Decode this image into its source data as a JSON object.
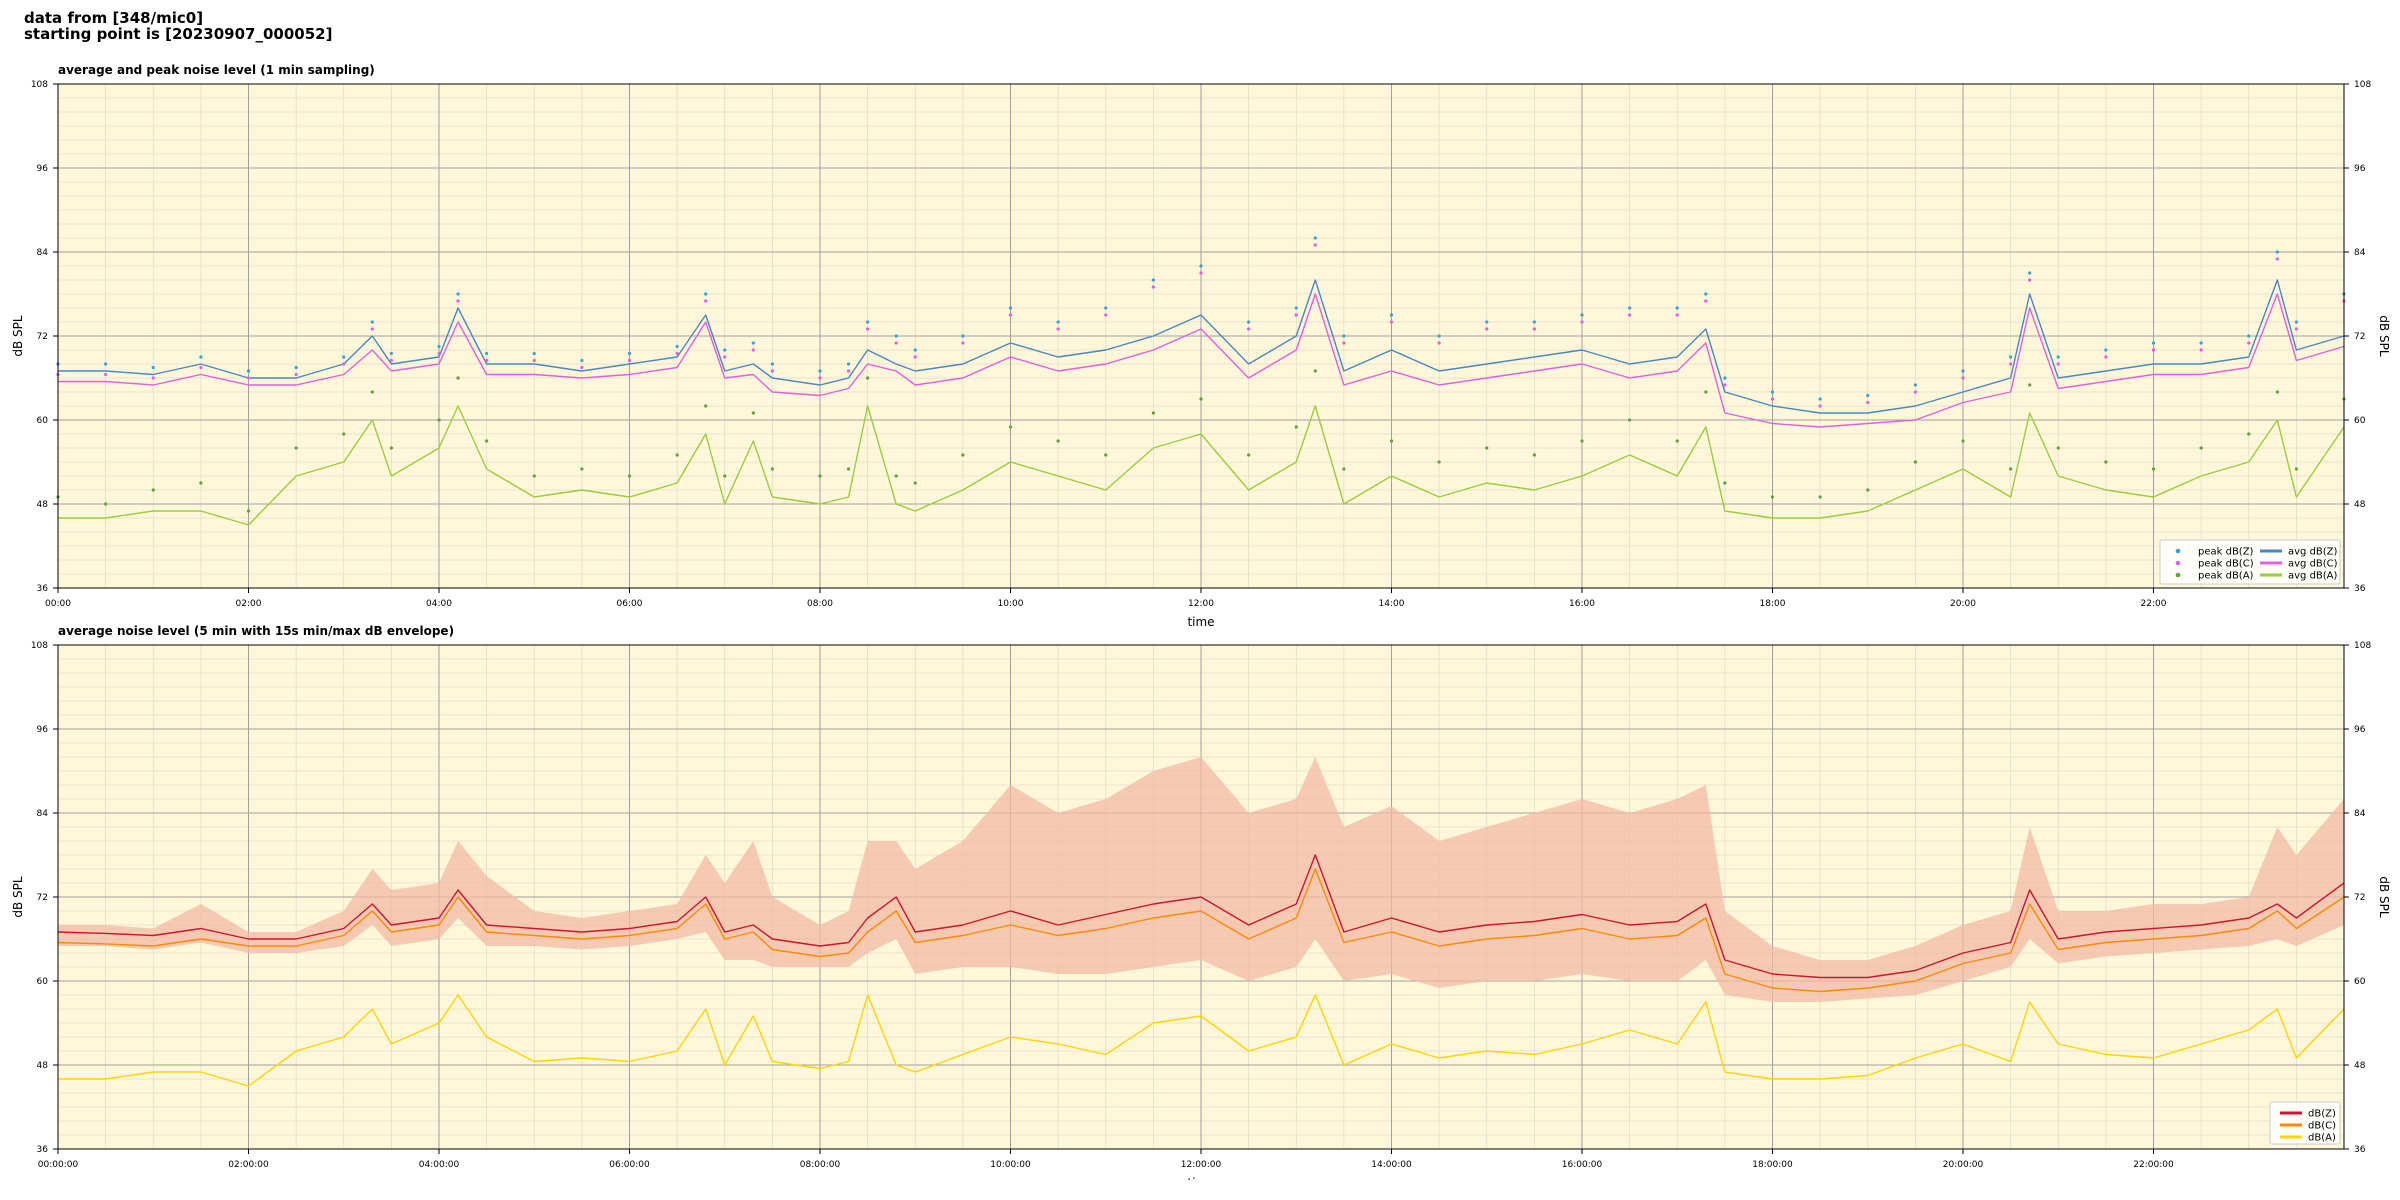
{
  "header": {
    "line1": "data from [348/mic0]",
    "line2": "starting point is [20230907_000052]"
  },
  "colors": {
    "background": "#fff7d9",
    "grid_major": "#a0a0a0",
    "grid_minor": "#dcdcc8",
    "dbz": "#4a87c0",
    "dbc": "#e060e0",
    "dba": "#9bcd3a",
    "dbz2": "#cc1433",
    "dbc2": "#ff8a00",
    "dba2": "#ffd400",
    "envelope": "#f3b9a6"
  },
  "chart_data": [
    {
      "type": "line",
      "title": "average and peak noise level (1 min sampling)",
      "xlabel": "time",
      "ylabel": "dB SPL",
      "ylabel_right": "dB SPL",
      "xlim": [
        0,
        24
      ],
      "ylim": [
        36,
        108
      ],
      "yticks": [
        "36",
        "48",
        "60",
        "72",
        "84",
        "96",
        "108"
      ],
      "xtick_labels": [
        "00:00",
        "02:00",
        "04:00",
        "06:00",
        "08:00",
        "10:00",
        "12:00",
        "14:00",
        "16:00",
        "18:00",
        "20:00",
        "22:00"
      ],
      "grid": true,
      "legend_position": "lower-right",
      "legend": [
        "peak dB(Z)",
        "peak dB(C)",
        "peak dB(A)",
        "avg dB(Z)",
        "avg dB(C)",
        "avg dB(A)"
      ],
      "x": [
        0,
        0.5,
        1,
        1.5,
        2,
        2.5,
        3,
        3.3,
        3.5,
        4,
        4.2,
        4.5,
        5,
        5.5,
        6,
        6.5,
        6.8,
        7,
        7.3,
        7.5,
        8,
        8.3,
        8.5,
        8.8,
        9,
        9.5,
        10,
        10.5,
        11,
        11.5,
        12,
        12.5,
        13,
        13.2,
        13.5,
        14,
        14.5,
        15,
        15.5,
        16,
        16.5,
        17,
        17.3,
        17.5,
        18,
        18.5,
        19,
        19.5,
        20,
        20.5,
        20.7,
        21,
        21.5,
        22,
        22.5,
        23,
        23.3,
        23.5,
        24
      ],
      "series": [
        {
          "name": "avg dB(Z)",
          "values": [
            67,
            67,
            66.5,
            68,
            66,
            66,
            68,
            72,
            68,
            69,
            76,
            68,
            68,
            67,
            68,
            69,
            75,
            67,
            68,
            66,
            65,
            66,
            70,
            68,
            67,
            68,
            71,
            69,
            70,
            72,
            75,
            68,
            72,
            80,
            67,
            70,
            67,
            68,
            69,
            70,
            68,
            69,
            73,
            64,
            62,
            61,
            61,
            62,
            64,
            66,
            78,
            66,
            67,
            68,
            68,
            69,
            80,
            70,
            72
          ]
        },
        {
          "name": "avg dB(C)",
          "values": [
            65.5,
            65.5,
            65,
            66.5,
            65,
            65,
            66.5,
            70,
            67,
            68,
            74,
            66.5,
            66.5,
            66,
            66.5,
            67.5,
            74,
            66,
            66.5,
            64,
            63.5,
            64.5,
            68,
            67,
            65,
            66,
            69,
            67,
            68,
            70,
            73,
            66,
            70,
            78,
            65,
            67,
            65,
            66,
            67,
            68,
            66,
            67,
            71,
            61,
            59.5,
            59,
            59.5,
            60,
            62.5,
            64,
            76,
            64.5,
            65.5,
            66.5,
            66.5,
            67.5,
            78,
            68.5,
            70.5
          ]
        },
        {
          "name": "avg dB(A)",
          "values": [
            46,
            46,
            47,
            47,
            45,
            52,
            54,
            60,
            52,
            56,
            62,
            53,
            49,
            50,
            49,
            51,
            58,
            48,
            57,
            49,
            48,
            49,
            62,
            48,
            47,
            50,
            54,
            52,
            50,
            56,
            58,
            50,
            54,
            62,
            48,
            52,
            49,
            51,
            50,
            52,
            55,
            52,
            59,
            47,
            46,
            46,
            47,
            50,
            53,
            49,
            61,
            52,
            50,
            49,
            52,
            54,
            60,
            49,
            59
          ]
        },
        {
          "name": "peak dB(Z)",
          "values": [
            68,
            68,
            67.5,
            69,
            67,
            67.5,
            69,
            74,
            69.5,
            70.5,
            78,
            69.5,
            69.5,
            68.5,
            69.5,
            70.5,
            78,
            70,
            71,
            68,
            67,
            68,
            74,
            72,
            70,
            72,
            76,
            74,
            76,
            80,
            82,
            74,
            76,
            86,
            72,
            75,
            72,
            74,
            74,
            75,
            76,
            76,
            78,
            66,
            64,
            63,
            63.5,
            65,
            67,
            69,
            81,
            69,
            70,
            71,
            71,
            72,
            84,
            74,
            78
          ]
        },
        {
          "name": "peak dB(C)",
          "values": [
            66.5,
            66.5,
            66,
            67.5,
            66,
            66.5,
            68,
            73,
            68.5,
            69.5,
            77,
            68.5,
            68.5,
            67.5,
            68.5,
            69.5,
            77,
            69,
            70,
            67,
            66,
            67,
            73,
            71,
            69,
            71,
            75,
            73,
            75,
            79,
            81,
            73,
            75,
            85,
            71,
            74,
            71,
            73,
            73,
            74,
            75,
            75,
            77,
            65,
            63,
            62,
            62.5,
            64,
            66,
            68,
            80,
            68,
            69,
            70,
            70,
            71,
            83,
            73,
            77
          ]
        },
        {
          "name": "peak dB(A)",
          "values": [
            49,
            48,
            50,
            51,
            47,
            56,
            58,
            64,
            56,
            60,
            66,
            57,
            52,
            53,
            52,
            55,
            62,
            52,
            61,
            53,
            52,
            53,
            66,
            52,
            51,
            55,
            59,
            57,
            55,
            61,
            63,
            55,
            59,
            67,
            53,
            57,
            54,
            56,
            55,
            57,
            60,
            57,
            64,
            51,
            49,
            49,
            50,
            54,
            57,
            53,
            65,
            56,
            54,
            53,
            56,
            58,
            64,
            53,
            63
          ]
        }
      ]
    },
    {
      "type": "line",
      "title": "average noise level (5 min with 15s min/max dB envelope)",
      "xlabel": "time",
      "ylabel": "dB SPL",
      "ylabel_right": "dB SPL",
      "xlim": [
        0,
        24
      ],
      "ylim": [
        36,
        108
      ],
      "yticks": [
        "36",
        "48",
        "60",
        "72",
        "84",
        "96",
        "108"
      ],
      "xtick_labels": [
        "00:00:00",
        "02:00:00",
        "04:00:00",
        "06:00:00",
        "08:00:00",
        "10:00:00",
        "12:00:00",
        "14:00:00",
        "16:00:00",
        "18:00:00",
        "20:00:00",
        "22:00:00"
      ],
      "grid": true,
      "legend_position": "lower-right",
      "legend": [
        "dB(Z)",
        "dB(C)",
        "dB(A)"
      ],
      "x": [
        0,
        0.5,
        1,
        1.5,
        2,
        2.5,
        3,
        3.3,
        3.5,
        4,
        4.2,
        4.5,
        5,
        5.5,
        6,
        6.5,
        6.8,
        7,
        7.3,
        7.5,
        8,
        8.3,
        8.5,
        8.8,
        9,
        9.5,
        10,
        10.5,
        11,
        11.5,
        12,
        12.5,
        13,
        13.2,
        13.5,
        14,
        14.5,
        15,
        15.5,
        16,
        16.5,
        17,
        17.3,
        17.5,
        18,
        18.5,
        19,
        19.5,
        20,
        20.5,
        20.7,
        21,
        21.5,
        22,
        22.5,
        23,
        23.3,
        23.5,
        24
      ],
      "series": [
        {
          "name": "dB(Z)",
          "values": [
            67,
            66.8,
            66.5,
            67.5,
            66,
            66,
            67.5,
            71,
            68,
            69,
            73,
            68,
            67.5,
            67,
            67.5,
            68.5,
            72,
            67,
            68,
            66,
            65,
            65.5,
            69,
            72,
            67,
            68,
            70,
            68,
            69.5,
            71,
            72,
            68,
            71,
            78,
            67,
            69,
            67,
            68,
            68.5,
            69.5,
            68,
            68.5,
            71,
            63,
            61,
            60.5,
            60.5,
            61.5,
            64,
            65.5,
            73,
            66,
            67,
            67.5,
            68,
            69,
            71,
            69,
            74
          ]
        },
        {
          "name": "dB(C)",
          "values": [
            65.5,
            65.3,
            65,
            66,
            65,
            65,
            66.5,
            70,
            67,
            68,
            72,
            67,
            66.5,
            66,
            66.5,
            67.5,
            71,
            66,
            67,
            64.5,
            63.5,
            64,
            67,
            70,
            65.5,
            66.5,
            68,
            66.5,
            67.5,
            69,
            70,
            66,
            69,
            76,
            65.5,
            67,
            65,
            66,
            66.5,
            67.5,
            66,
            66.5,
            69,
            61,
            59,
            58.5,
            59,
            60,
            62.5,
            64,
            71,
            64.5,
            65.5,
            66,
            66.5,
            67.5,
            70,
            67.5,
            72
          ]
        },
        {
          "name": "dB(A)",
          "values": [
            46,
            46,
            47,
            47,
            45,
            50,
            52,
            56,
            51,
            54,
            58,
            52,
            48.5,
            49,
            48.5,
            50,
            56,
            48,
            55,
            48.5,
            47.5,
            48.5,
            58,
            48,
            47,
            49.5,
            52,
            51,
            49.5,
            54,
            55,
            50,
            52,
            58,
            48,
            51,
            49,
            50,
            49.5,
            51,
            53,
            51,
            57,
            47,
            46,
            46,
            46.5,
            49,
            51,
            48.5,
            57,
            51,
            49.5,
            49,
            51,
            53,
            56,
            49,
            56
          ]
        },
        {
          "name": "envelope max",
          "values": [
            68,
            68,
            67.5,
            71,
            67,
            67,
            70,
            76,
            73,
            74,
            80,
            75,
            70,
            69,
            70,
            71,
            78,
            74,
            80,
            72,
            68,
            70,
            80,
            80,
            76,
            80,
            88,
            84,
            86,
            90,
            92,
            84,
            86,
            92,
            82,
            85,
            80,
            82,
            84,
            86,
            84,
            86,
            88,
            70,
            65,
            63,
            63,
            65,
            68,
            70,
            82,
            70,
            70,
            71,
            71,
            72,
            82,
            78,
            86
          ]
        },
        {
          "name": "envelope min",
          "values": [
            65,
            65,
            64.5,
            65.5,
            64,
            64,
            65,
            68,
            65,
            66,
            69,
            65,
            65,
            64.5,
            65,
            66,
            67,
            63,
            63,
            62,
            62,
            62,
            64,
            66,
            61,
            62,
            62,
            61,
            61,
            62,
            63,
            60,
            62,
            66,
            60,
            61,
            59,
            60,
            60,
            61,
            60,
            60,
            63,
            58,
            57,
            57,
            57.5,
            58,
            60,
            62,
            66,
            62.5,
            63.5,
            64,
            64.5,
            65,
            66,
            65,
            68
          ]
        }
      ]
    }
  ]
}
